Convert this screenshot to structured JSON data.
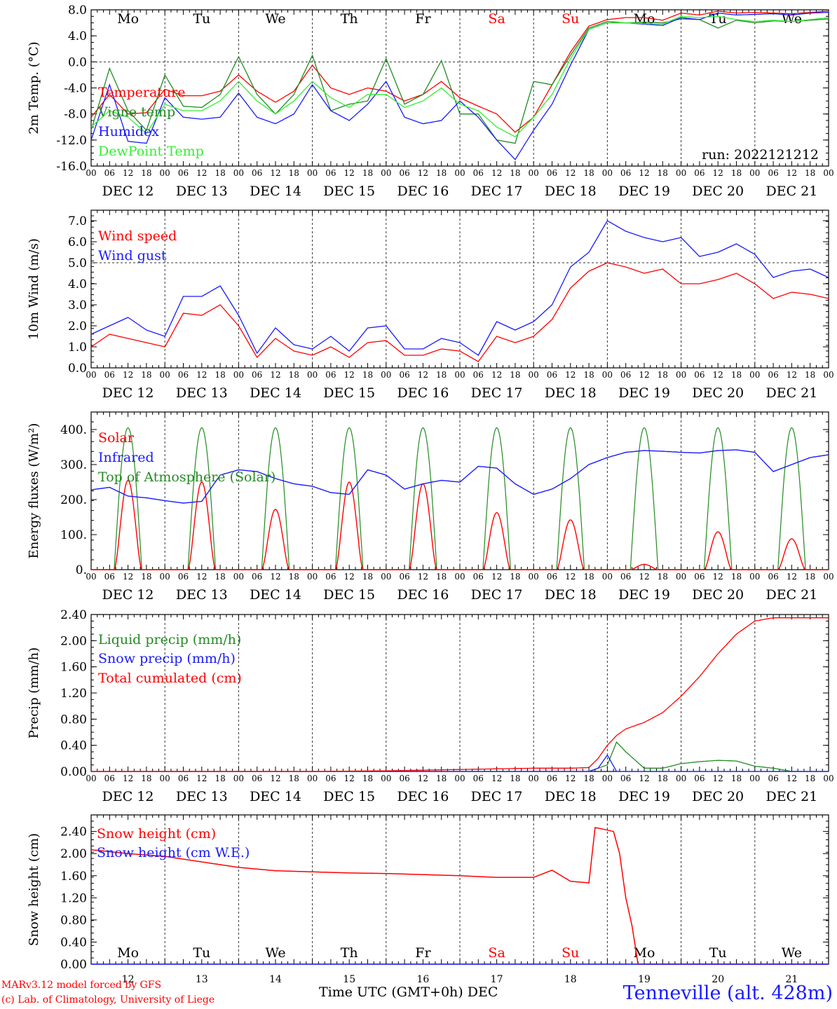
{
  "days": [
    "12",
    "13",
    "14",
    "15",
    "16",
    "17",
    "18",
    "19",
    "20",
    "21"
  ],
  "day_names": [
    "Mo",
    "Tu",
    "We",
    "Th",
    "Fr",
    "Sa",
    "Su",
    "Mo",
    "Tu",
    "We"
  ],
  "weekend_color": "#ff0000",
  "date_labels": [
    "DEC 12",
    "DEC 13",
    "DEC 14",
    "DEC 15",
    "DEC 16",
    "DEC 17",
    "DEC 18",
    "DEC 19",
    "DEC 20",
    "DEC 21"
  ],
  "hour_ticks": [
    "00",
    "06",
    "12",
    "18"
  ],
  "hour_end": "00",
  "run_label": "run: 2022121212",
  "footer": {
    "model": "MARv3.12 model forced by GFS",
    "lab": "(c) Lab. of Climatology, University of Liege",
    "xlabel": "Time UTC (GMT+0h) DEC",
    "station": "Tenneville (alt. 428m)"
  },
  "chart_data": [
    {
      "type": "line",
      "ylabel": "2m Temp. (°C)",
      "ylim": [
        -16,
        8
      ],
      "yticks": [
        "8.0",
        "4.0",
        "0.0",
        "-4.0",
        "-8.0",
        "-12.0",
        "-16.0"
      ],
      "x_hours": [
        0,
        6,
        12,
        18,
        24,
        30,
        36,
        42,
        48,
        54,
        60,
        66,
        72,
        78,
        84,
        90,
        96,
        102,
        108,
        114,
        120,
        126,
        132,
        138,
        144,
        150,
        156,
        162,
        168,
        174,
        180,
        186,
        192,
        198,
        204,
        210,
        216,
        222,
        228,
        234,
        240
      ],
      "series": [
        {
          "name": "Temperature",
          "color": "#ff0000",
          "values": [
            -8.5,
            -5.0,
            -8.0,
            -7.8,
            -4.2,
            -5.2,
            -5.2,
            -4.5,
            -2.0,
            -4.5,
            -6.2,
            -4.5,
            -0.5,
            -4.0,
            -5.0,
            -4.0,
            -4.5,
            -6.0,
            -5.0,
            -3.0,
            -5.5,
            -6.8,
            -8.0,
            -10.8,
            -8.5,
            -3.5,
            1.5,
            5.5,
            6.5,
            6.8,
            6.8,
            6.4,
            7.5,
            7.2,
            7.8,
            7.5,
            7.6,
            7.5,
            7.4,
            7.6,
            7.8
          ]
        },
        {
          "name": "Vigne temp",
          "color": "#228b22",
          "values": [
            -10.5,
            -1.0,
            -7.5,
            -10.5,
            -2.0,
            -6.8,
            -7.0,
            -5.0,
            0.8,
            -5.0,
            -8.0,
            -5.0,
            1.0,
            -7.5,
            -6.5,
            -6.0,
            0.5,
            -6.5,
            -5.0,
            0.2,
            -8.0,
            -8.0,
            -12.0,
            -12.5,
            -3.0,
            -3.5,
            1.0,
            5.2,
            6.2,
            6.0,
            6.1,
            6.0,
            6.6,
            6.5,
            5.2,
            6.4,
            6.0,
            6.3,
            6.2,
            6.4,
            6.6
          ]
        },
        {
          "name": "Humidex",
          "color": "#1a1aff",
          "values": [
            -12.0,
            -3.5,
            -12.2,
            -12.5,
            -5.5,
            -8.5,
            -8.8,
            -8.5,
            -4.8,
            -8.5,
            -9.5,
            -8.0,
            -3.5,
            -7.5,
            -9.0,
            -6.5,
            -3.0,
            -8.5,
            -9.5,
            -9.0,
            -6.0,
            -8.5,
            -12.0,
            -15.0,
            -10.5,
            -6.5,
            -0.5,
            5.0,
            6.0,
            6.0,
            5.8,
            5.6,
            6.8,
            6.5,
            7.5,
            7.2,
            7.3,
            7.4,
            7.2,
            7.5,
            7.6
          ]
        },
        {
          "name": "DewPoint Temp",
          "color": "#33ee33",
          "values": [
            -10.0,
            -7.5,
            -8.5,
            -11.0,
            -6.5,
            -7.5,
            -7.5,
            -6.0,
            -3.0,
            -6.0,
            -8.0,
            -6.0,
            -3.0,
            -5.5,
            -7.0,
            -5.0,
            -5.0,
            -7.0,
            -6.0,
            -4.0,
            -6.5,
            -7.5,
            -10.0,
            -11.5,
            -8.5,
            -5.0,
            0.5,
            5.0,
            6.0,
            6.0,
            5.9,
            5.8,
            7.0,
            6.8,
            7.0,
            6.5,
            6.2,
            6.4,
            6.2,
            6.5,
            6.8
          ]
        }
      ]
    },
    {
      "type": "line",
      "ylabel": "10m Wind (m/s)",
      "ylim": [
        0,
        7.5
      ],
      "yticks": [
        "7.0",
        "6.0",
        "5.0",
        "4.0",
        "3.0",
        "2.0",
        "1.0",
        "0.0"
      ],
      "reference_line": 5.0,
      "x_hours": [
        0,
        6,
        12,
        18,
        24,
        30,
        36,
        42,
        48,
        54,
        60,
        66,
        72,
        78,
        84,
        90,
        96,
        102,
        108,
        114,
        120,
        126,
        132,
        138,
        144,
        150,
        156,
        162,
        168,
        174,
        180,
        186,
        192,
        198,
        204,
        210,
        216,
        222,
        228,
        234,
        240
      ],
      "series": [
        {
          "name": "Wind speed",
          "color": "#ff0000",
          "values": [
            1.0,
            1.6,
            1.4,
            1.2,
            1.0,
            2.6,
            2.5,
            3.0,
            2.0,
            0.5,
            1.4,
            0.8,
            0.6,
            1.0,
            0.5,
            1.2,
            1.3,
            0.6,
            0.6,
            0.9,
            0.8,
            0.3,
            1.5,
            1.2,
            1.5,
            2.3,
            3.8,
            4.6,
            5.0,
            4.8,
            4.5,
            4.7,
            4.0,
            4.0,
            4.2,
            4.5,
            4.0,
            3.3,
            3.6,
            3.5,
            3.3
          ]
        },
        {
          "name": "Wind gust",
          "color": "#1a1aff",
          "values": [
            1.6,
            2.0,
            2.4,
            1.8,
            1.5,
            3.4,
            3.4,
            3.9,
            2.5,
            0.7,
            1.9,
            1.1,
            0.9,
            1.5,
            0.8,
            1.9,
            2.0,
            0.9,
            0.9,
            1.4,
            1.2,
            0.6,
            2.2,
            1.8,
            2.2,
            3.0,
            4.8,
            5.5,
            7.0,
            6.5,
            6.2,
            6.0,
            6.2,
            5.3,
            5.5,
            5.9,
            5.4,
            4.3,
            4.6,
            4.7,
            4.3
          ]
        }
      ]
    },
    {
      "type": "line",
      "ylabel": "Energy fluxes (W/m²)",
      "ylim": [
        0,
        450
      ],
      "yticks": [
        "400.",
        "300.",
        "200.",
        "100.",
        "0."
      ],
      "diurnal": {
        "toa_peak": 405,
        "solar_peaks": [
          255,
          250,
          172,
          250,
          245,
          163,
          142,
          15,
          108,
          88
        ],
        "infrared_hours": [
          0,
          6,
          12,
          18,
          24,
          30,
          36,
          42,
          48,
          54,
          60,
          66,
          72,
          78,
          84,
          90,
          96,
          102,
          108,
          114,
          120,
          126,
          132,
          138,
          144,
          150,
          156,
          162,
          168,
          174,
          180,
          186,
          192,
          198,
          204,
          210,
          216,
          222,
          228,
          234,
          240
        ],
        "infrared_values": [
          228,
          235,
          210,
          205,
          197,
          190,
          195,
          270,
          285,
          280,
          260,
          245,
          238,
          220,
          215,
          285,
          270,
          230,
          245,
          255,
          250,
          295,
          290,
          245,
          215,
          230,
          260,
          300,
          320,
          335,
          340,
          338,
          335,
          333,
          340,
          342,
          335,
          280,
          300,
          320,
          328
        ]
      },
      "series": [
        {
          "name": "Solar",
          "color": "#ff0000"
        },
        {
          "name": "Infrared",
          "color": "#1a1aff"
        },
        {
          "name": "Top of Atmosphere (Solar)",
          "color": "#228b22"
        }
      ]
    },
    {
      "type": "line",
      "ylabel": "Precip (mm/h)",
      "ylim": [
        0,
        2.4
      ],
      "yticks": [
        "2.40",
        "2.00",
        "1.60",
        "1.20",
        "0.80",
        "0.40",
        "0.00"
      ],
      "x_hours": [
        0,
        24,
        48,
        72,
        96,
        120,
        144,
        156,
        162,
        165,
        168,
        171,
        174,
        180,
        186,
        192,
        198,
        204,
        210,
        216,
        222,
        228,
        234,
        240
      ],
      "series": [
        {
          "name": "Liquid precip (mm/h)",
          "color": "#228b22",
          "values": [
            0,
            0,
            0,
            0,
            0,
            0,
            0,
            0,
            0,
            0.05,
            0.1,
            0.45,
            0.3,
            0.05,
            0.05,
            0.12,
            0.15,
            0.17,
            0.16,
            0.08,
            0.05,
            0,
            0,
            0
          ]
        },
        {
          "name": "Snow precip (mm/h)",
          "color": "#1a1aff",
          "values": [
            0,
            0,
            0,
            0,
            0,
            0,
            0,
            0,
            0,
            0.05,
            0.25,
            0,
            0,
            0,
            0,
            0,
            0,
            0,
            0,
            0,
            0,
            0,
            0,
            0
          ]
        },
        {
          "name": "Total cumulated (cm)",
          "color": "#ff0000",
          "values": [
            0,
            0,
            0,
            0,
            0.01,
            0.03,
            0.05,
            0.05,
            0.06,
            0.2,
            0.4,
            0.55,
            0.65,
            0.75,
            0.9,
            1.15,
            1.45,
            1.8,
            2.1,
            2.3,
            2.35,
            2.35,
            2.35,
            2.35
          ]
        }
      ]
    },
    {
      "type": "line",
      "ylabel": "Snow height (cm)",
      "ylim": [
        0,
        2.7
      ],
      "yticks": [
        "2.40",
        "2.00",
        "1.60",
        "1.20",
        "0.80",
        "0.40",
        "0.00"
      ],
      "x_hours": [
        0,
        12,
        24,
        36,
        48,
        60,
        72,
        84,
        96,
        108,
        120,
        132,
        144,
        150,
        156,
        162,
        164,
        166,
        170,
        172,
        174,
        176,
        178,
        180,
        190,
        200,
        210,
        220,
        230,
        240
      ],
      "series": [
        {
          "name": "Snow height (cm)",
          "color": "#ff0000",
          "values": [
            2.07,
            2.0,
            1.95,
            1.85,
            1.75,
            1.69,
            1.67,
            1.65,
            1.64,
            1.62,
            1.6,
            1.57,
            1.57,
            1.7,
            1.5,
            1.47,
            2.47,
            2.45,
            2.4,
            2.0,
            1.2,
            0.7,
            0.0,
            0,
            0,
            0,
            0,
            0,
            0,
            0
          ]
        },
        {
          "name": "Snow height (cm W.E.)",
          "color": "#1a1aff",
          "values": [
            0,
            0,
            0,
            0,
            0,
            0,
            0,
            0,
            0,
            0,
            0,
            0,
            0,
            0,
            0,
            0,
            0,
            0,
            0,
            0,
            0,
            0,
            0,
            0,
            0,
            0,
            0,
            0,
            0,
            0
          ]
        }
      ]
    }
  ]
}
